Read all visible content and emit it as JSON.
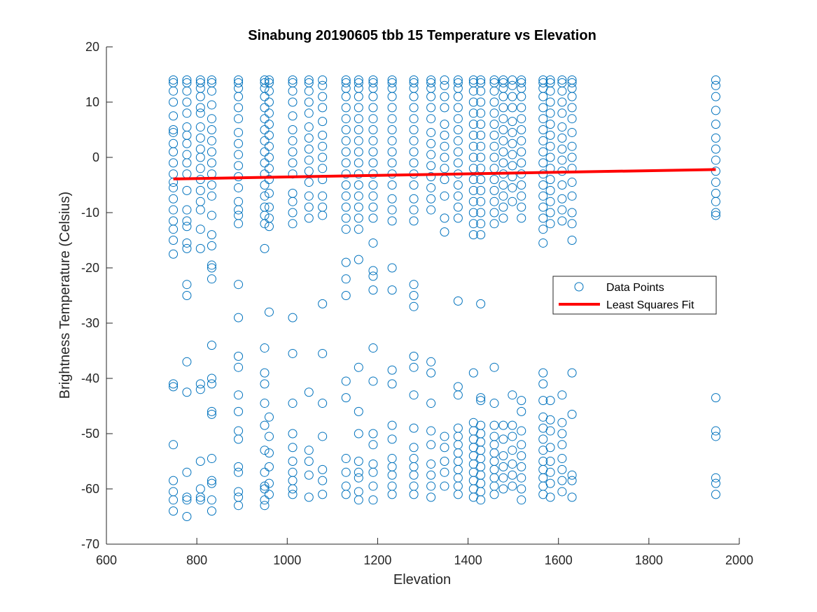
{
  "chart_data": {
    "type": "scatter",
    "title": "Sinabung 20190605 tbb 15 Temperature vs Elevation",
    "xlabel": "Elevation",
    "ylabel": "Brightness Temperature (Celsius)",
    "xlim": [
      600,
      2000
    ],
    "ylim": [
      -70,
      20
    ],
    "xticks": [
      600,
      800,
      1000,
      1200,
      1400,
      1600,
      1800,
      2000
    ],
    "yticks": [
      -70,
      -60,
      -50,
      -40,
      -30,
      -20,
      -10,
      0,
      10,
      20
    ],
    "grid": false,
    "legend_position": "right",
    "legend": [
      "Data Points",
      "Least Squares Fit"
    ],
    "colors": {
      "points": "#0072BD",
      "fit": "#FF0000",
      "axes": "#262626"
    },
    "series": [
      {
        "name": "Data Points",
        "marker": "open-circle",
        "columns": [
          {
            "x": 748,
            "y": [
              -64,
              -62,
              -60.5,
              -58.5,
              -52,
              -41.5,
              -41,
              -17.5,
              -15,
              -13,
              -11.5,
              -9.5,
              -7.5,
              -5.5,
              -4.5,
              -3,
              -1,
              1,
              2.5,
              4.5,
              5,
              7.5,
              10,
              12,
              13.5,
              14
            ]
          },
          {
            "x": 778,
            "y": [
              -65,
              -62,
              -61.5,
              -57,
              -42.5,
              -37,
              -25,
              -23,
              -16.5,
              -15.5,
              -12.5,
              -11.5,
              -9.5,
              -6,
              -3,
              -1,
              0.5,
              2.5,
              4,
              5.5,
              8,
              10,
              12,
              13.5,
              14
            ]
          },
          {
            "x": 808,
            "y": [
              -62,
              -61.5,
              -60,
              -55,
              -42,
              -41,
              -16.5,
              -13,
              -9.5,
              -8,
              -6,
              -4,
              -2,
              0,
              1.5,
              3.5,
              5.5,
              8,
              9,
              11,
              12.5,
              13.5,
              14
            ]
          },
          {
            "x": 833,
            "y": [
              -64,
              -62,
              -59,
              -58.5,
              -54.5,
              -46.5,
              -46,
              -41,
              -40,
              -34,
              -22,
              -20,
              -19.5,
              -16,
              -14,
              -10.5,
              -7,
              -5,
              -3,
              -1,
              1,
              3,
              5,
              7,
              9.5,
              12,
              13.5,
              14
            ]
          },
          {
            "x": 892,
            "y": [
              -63,
              -61.5,
              -60.5,
              -57,
              -56,
              -51,
              -49.5,
              -46,
              -43,
              -38,
              -36,
              -29,
              -23,
              -12,
              -10.5,
              -9.5,
              -8,
              -5.5,
              -3.5,
              -1.5,
              0.5,
              2.5,
              4.5,
              7,
              9,
              11,
              12.5,
              13.5,
              14
            ]
          },
          {
            "x": 950,
            "y": [
              -63,
              -62,
              -60,
              -59.5,
              -57,
              -53,
              -48.5,
              -44.5,
              -41,
              -39,
              -34.5,
              -16.5,
              -12,
              -10.5,
              -9,
              -7,
              -5,
              -3,
              -1,
              1,
              3,
              5,
              7,
              9,
              11,
              12.5,
              13.5,
              14
            ]
          },
          {
            "x": 960,
            "y": [
              -61,
              -59,
              -56,
              -53.5,
              -50.5,
              -47,
              -28,
              -12.5,
              -11,
              -9,
              -6.5,
              -4,
              -2,
              0,
              2,
              4,
              6,
              8,
              10,
              12,
              13.5,
              14
            ]
          },
          {
            "x": 1012,
            "y": [
              -61,
              -60,
              -58.5,
              -57,
              -55,
              -52.5,
              -50,
              -44.5,
              -35.5,
              -29,
              -12,
              -10,
              -8,
              -6.5,
              -3,
              -1,
              1,
              3,
              5,
              7.5,
              10,
              12,
              13.5,
              14
            ]
          },
          {
            "x": 1048,
            "y": [
              -61.5,
              -57.5,
              -55,
              -53,
              -42.5,
              -11,
              -9,
              -7,
              -4.5,
              -2.5,
              -0.5,
              1.5,
              3.5,
              5.5,
              8,
              10,
              12,
              13.5,
              14
            ]
          },
          {
            "x": 1078,
            "y": [
              -61,
              -58.5,
              -56.5,
              -50.5,
              -44.5,
              -35.5,
              -26.5,
              -10.5,
              -9,
              -7,
              -4,
              -2,
              0,
              2,
              4,
              6.5,
              9,
              11,
              13,
              14
            ]
          },
          {
            "x": 1130,
            "y": [
              -61,
              -59.5,
              -57,
              -54.5,
              -43.5,
              -40.5,
              -25,
              -22,
              -19,
              -13,
              -11,
              -9,
              -7,
              -5,
              -3,
              -1,
              1,
              3,
              5,
              7,
              9,
              11,
              12.5,
              13.5,
              14
            ]
          },
          {
            "x": 1158,
            "y": [
              -62,
              -60.5,
              -58,
              -57,
              -55,
              -50,
              -46,
              -38,
              -18.5,
              -13,
              -11,
              -9,
              -7,
              -5,
              -3,
              -1,
              1,
              3,
              5,
              7,
              9,
              11,
              12.5,
              13.5,
              14
            ]
          },
          {
            "x": 1190,
            "y": [
              -62,
              -59.5,
              -57,
              -55.5,
              -52,
              -50,
              -40.5,
              -34.5,
              -24,
              -21.5,
              -20.5,
              -15.5,
              -11,
              -9,
              -7,
              -5,
              -3,
              -1,
              1,
              3,
              5,
              7,
              9,
              11,
              12.5,
              13.5,
              14
            ]
          },
          {
            "x": 1232,
            "y": [
              -61,
              -59.5,
              -57.5,
              -56,
              -54.5,
              -51,
              -48.5,
              -41,
              -38.5,
              -24,
              -20,
              -11.5,
              -9.5,
              -7.5,
              -5,
              -3,
              -1,
              1,
              3,
              5,
              7,
              9,
              11,
              12.5,
              13.5,
              14
            ]
          },
          {
            "x": 1280,
            "y": [
              -61,
              -59.5,
              -57.5,
              -56,
              -54.5,
              -52.5,
              -49,
              -43,
              -38,
              -36,
              -27,
              -25,
              -23,
              -11.5,
              -9.5,
              -7.5,
              -5,
              -3,
              -1,
              1,
              3,
              5,
              7,
              9,
              11,
              12.5,
              13.5,
              14
            ]
          },
          {
            "x": 1318,
            "y": [
              -61.5,
              -59.5,
              -57.5,
              -55.5,
              -52,
              -49.5,
              -44.5,
              -39,
              -37,
              -9.5,
              -7.5,
              -5.5,
              -3.5,
              -1.5,
              0.5,
              2.5,
              4.5,
              7,
              9,
              11,
              12.5,
              13.5,
              14
            ]
          },
          {
            "x": 1348,
            "y": [
              -59.5,
              -57,
              -55,
              -52.5,
              -50.5,
              -13.5,
              -11,
              -7,
              -4,
              -2,
              0,
              2,
              4,
              6,
              9,
              11,
              13,
              14
            ]
          },
          {
            "x": 1378,
            "y": [
              -61,
              -59.5,
              -58,
              -56.5,
              -55,
              -53.5,
              -52,
              -50.5,
              -49,
              -43,
              -41.5,
              -26,
              -11,
              -9,
              -7,
              -5,
              -3,
              -1,
              1,
              3,
              5,
              7,
              9,
              11,
              12.5,
              13.5,
              14
            ]
          },
          {
            "x": 1412,
            "y": [
              -61.5,
              -60,
              -58.5,
              -57,
              -55.5,
              -54,
              -52.5,
              -51,
              -49.5,
              -48,
              -39,
              -14,
              -12,
              -10,
              -8,
              -6,
              -4,
              -2,
              0,
              2,
              4,
              6,
              8,
              10,
              12,
              13.5,
              14
            ]
          },
          {
            "x": 1428,
            "y": [
              -62,
              -60.5,
              -59,
              -57.5,
              -56,
              -54.5,
              -53,
              -51.5,
              -50,
              -48.5,
              -44,
              -43.5,
              -26.5,
              -14,
              -12,
              -10,
              -8,
              -6,
              -4,
              -2,
              0,
              2,
              4,
              6,
              8,
              10,
              12,
              13.5,
              14
            ]
          },
          {
            "x": 1458,
            "y": [
              -61,
              -59.5,
              -58,
              -56.5,
              -55,
              -53.5,
              -52,
              -50.5,
              -48.5,
              -44.5,
              -38,
              -12,
              -10,
              -8,
              -6,
              -4,
              -2,
              0,
              2,
              4,
              6,
              8,
              10,
              12,
              13.5,
              14
            ]
          },
          {
            "x": 1478,
            "y": [
              -60,
              -58,
              -56,
              -54,
              -51,
              -48.5,
              -11,
              -9,
              -7,
              -5,
              -3,
              -1,
              1,
              3,
              5,
              7,
              9,
              11,
              12.5,
              13.5,
              14
            ]
          },
          {
            "x": 1498,
            "y": [
              -59.5,
              -57.5,
              -55.5,
              -53,
              -50.5,
              -48.5,
              -43,
              -8,
              -5.5,
              -3.5,
              -1.5,
              0.5,
              2.5,
              4.5,
              6.5,
              9,
              11,
              13,
              14
            ]
          },
          {
            "x": 1518,
            "y": [
              -62,
              -60,
              -58,
              -56,
              -54,
              -52,
              -49.5,
              -46,
              -44,
              -11,
              -9,
              -7,
              -5,
              -3,
              -1,
              1,
              3,
              5,
              7,
              9,
              11,
              12.5,
              13.5,
              14
            ]
          },
          {
            "x": 1566,
            "y": [
              -61,
              -59.5,
              -58,
              -56.5,
              -55,
              -53,
              -51,
              -49,
              -47,
              -44,
              -41,
              -39,
              -15.5,
              -13,
              -11,
              -9,
              -7,
              -5,
              -3,
              -1,
              1,
              3,
              5,
              7,
              9,
              11,
              12.5,
              13.5,
              14
            ]
          },
          {
            "x": 1582,
            "y": [
              -61.5,
              -59,
              -57,
              -55,
              -52.5,
              -49.5,
              -47.5,
              -44,
              -12,
              -10,
              -8,
              -6,
              -4,
              -2,
              0,
              2,
              4,
              6,
              8,
              10,
              12,
              13.5,
              14
            ]
          },
          {
            "x": 1608,
            "y": [
              -60.5,
              -58.5,
              -56.5,
              -54.5,
              -52,
              -50,
              -48,
              -43,
              -11.5,
              -9.5,
              -7.5,
              -5,
              -2.5,
              -0.5,
              1.5,
              3.5,
              5.5,
              8,
              10,
              12,
              13.5,
              14
            ]
          },
          {
            "x": 1630,
            "y": [
              -61.5,
              -58.5,
              -57.5,
              -46.5,
              -39,
              -15,
              -12,
              -10,
              -7,
              -4.5,
              -2,
              0,
              2,
              4.5,
              7,
              9,
              11,
              12.5,
              13.5,
              14
            ]
          },
          {
            "x": 1948,
            "y": [
              -61,
              -59,
              -58,
              -50.5,
              -49.5,
              -43.5,
              -10.5,
              -10,
              -8,
              -6.5,
              -4.5,
              -2.5,
              -0.5,
              1.5,
              3.5,
              6,
              8.5,
              11,
              13,
              14
            ]
          }
        ]
      },
      {
        "name": "Least Squares Fit",
        "type": "line",
        "x": [
          748,
          1948
        ],
        "y": [
          -3.9,
          -2.2
        ]
      }
    ]
  }
}
